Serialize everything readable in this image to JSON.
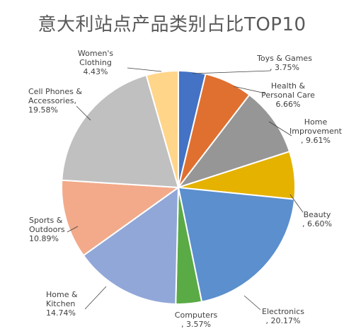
{
  "chart_data": {
    "type": "pie",
    "title": "意大利站点产品类别占比TOP10",
    "slices": [
      {
        "label": "Toys & Games",
        "value": 3.75,
        "display": "3.75%",
        "color": "#4472c4"
      },
      {
        "label": "Health & Personal Care",
        "value": 6.66,
        "display": "6.66%",
        "color": "#e07030"
      },
      {
        "label": "Home Improvement",
        "value": 9.61,
        "display": "9.61%",
        "color": "#969696"
      },
      {
        "label": "Beauty",
        "value": 6.6,
        "display": "6.60%",
        "color": "#e5b200"
      },
      {
        "label": "Electronics",
        "value": 20.17,
        "display": "20.17%",
        "color": "#5b8fce"
      },
      {
        "label": "Computers",
        "value": 3.57,
        "display": "3.57%",
        "color": "#5aaa46"
      },
      {
        "label": "Home & Kitchen",
        "value": 14.74,
        "display": "14.74%",
        "color": "#91a7d8"
      },
      {
        "label": "Sports & Outdoors",
        "value": 10.89,
        "display": "10.89%",
        "color": "#f2aa8a"
      },
      {
        "label": "Cell Phones & Accessories",
        "value": 19.58,
        "display": "19.58%",
        "color": "#c0c0c0"
      },
      {
        "label": "Women's Clothing",
        "value": 4.43,
        "display": "4.43%",
        "color": "#ffd58a"
      }
    ],
    "start_angle_deg": 0,
    "direction": "clockwise",
    "legend": "none"
  }
}
